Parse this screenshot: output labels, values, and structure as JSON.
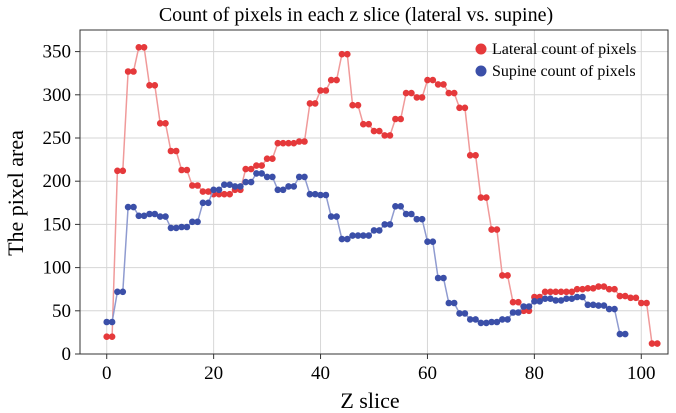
{
  "chart_data": {
    "type": "line",
    "title": "Count of pixels in each z slice (lateral vs. supine)",
    "xlabel": "Z slice",
    "ylabel": "The pixel area",
    "xlim": [
      -5,
      105
    ],
    "ylim": [
      0,
      375
    ],
    "xticks": [
      0,
      20,
      40,
      60,
      80,
      100
    ],
    "yticks": [
      0,
      50,
      100,
      150,
      200,
      250,
      300,
      350
    ],
    "grid": true,
    "legend_position": "top-right",
    "series": [
      {
        "name": "Lateral count of pixels",
        "color": "#e5393b",
        "line_color": "#f09a9a",
        "x": [
          0,
          1,
          2,
          3,
          4,
          5,
          6,
          7,
          8,
          9,
          10,
          11,
          12,
          13,
          14,
          15,
          16,
          17,
          18,
          19,
          20,
          21,
          22,
          23,
          24,
          25,
          26,
          27,
          28,
          29,
          30,
          31,
          32,
          33,
          34,
          35,
          36,
          37,
          38,
          39,
          40,
          41,
          42,
          43,
          44,
          45,
          46,
          47,
          48,
          49,
          50,
          51,
          52,
          53,
          54,
          55,
          56,
          57,
          58,
          59,
          60,
          61,
          62,
          63,
          64,
          65,
          66,
          67,
          68,
          69,
          70,
          71,
          72,
          73,
          74,
          75,
          76,
          77,
          78,
          79,
          80,
          81,
          82,
          83,
          84,
          85,
          86,
          87,
          88,
          89,
          90,
          91,
          92,
          93,
          94,
          95,
          96,
          97,
          98,
          99,
          100,
          101,
          102,
          103
        ],
        "y": [
          20,
          20,
          212,
          212,
          327,
          327,
          355,
          355,
          311,
          311,
          267,
          267,
          235,
          235,
          213,
          213,
          195,
          195,
          188,
          188,
          185,
          185,
          185,
          185,
          190,
          190,
          214,
          214,
          218,
          218,
          226,
          226,
          244,
          244,
          244,
          244,
          246,
          246,
          290,
          290,
          305,
          305,
          317,
          317,
          347,
          347,
          288,
          288,
          266,
          266,
          258,
          258,
          253,
          253,
          272,
          272,
          302,
          302,
          297,
          297,
          317,
          317,
          312,
          312,
          302,
          302,
          285,
          285,
          230,
          230,
          181,
          181,
          144,
          144,
          91,
          91,
          60,
          60,
          50,
          50,
          66,
          66,
          72,
          72,
          72,
          72,
          72,
          72,
          75,
          75,
          76,
          76,
          78,
          78,
          75,
          75,
          67,
          67,
          65,
          65,
          59,
          59,
          12,
          12
        ]
      },
      {
        "name": "Supine count of pixels",
        "color": "#3b4fa8",
        "line_color": "#8f9bd0",
        "x": [
          0,
          1,
          2,
          3,
          4,
          5,
          6,
          7,
          8,
          9,
          10,
          11,
          12,
          13,
          14,
          15,
          16,
          17,
          18,
          19,
          20,
          21,
          22,
          23,
          24,
          25,
          26,
          27,
          28,
          29,
          30,
          31,
          32,
          33,
          34,
          35,
          36,
          37,
          38,
          39,
          40,
          41,
          42,
          43,
          44,
          45,
          46,
          47,
          48,
          49,
          50,
          51,
          52,
          53,
          54,
          55,
          56,
          57,
          58,
          59,
          60,
          61,
          62,
          63,
          64,
          65,
          66,
          67,
          68,
          69,
          70,
          71,
          72,
          73,
          74,
          75,
          76,
          77,
          78,
          79,
          80,
          81,
          82,
          83,
          84,
          85,
          86,
          87,
          88,
          89,
          90,
          91,
          92,
          93,
          94,
          95,
          96,
          97
        ],
        "y": [
          37,
          37,
          72,
          72,
          170,
          170,
          160,
          160,
          162,
          162,
          159,
          159,
          146,
          146,
          147,
          147,
          153,
          153,
          175,
          175,
          190,
          190,
          196,
          196,
          194,
          194,
          199,
          199,
          209,
          209,
          205,
          205,
          190,
          190,
          194,
          194,
          205,
          205,
          185,
          185,
          184,
          184,
          159,
          159,
          133,
          133,
          137,
          137,
          137,
          137,
          143,
          143,
          150,
          150,
          171,
          171,
          162,
          162,
          156,
          156,
          130,
          130,
          88,
          88,
          59,
          59,
          47,
          47,
          40,
          40,
          36,
          36,
          37,
          37,
          40,
          40,
          48,
          48,
          55,
          55,
          61,
          61,
          64,
          64,
          62,
          62,
          64,
          64,
          66,
          66,
          57,
          57,
          56,
          56,
          52,
          52,
          23,
          23
        ]
      }
    ]
  }
}
